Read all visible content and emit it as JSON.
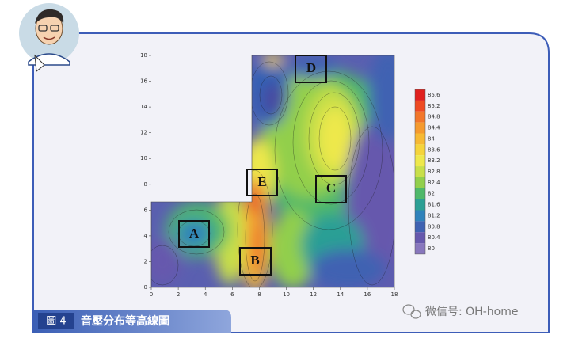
{
  "chart_data": {
    "type": "contour",
    "xlim": [
      0,
      18
    ],
    "ylim": [
      0,
      18
    ],
    "xticks": [
      0,
      2,
      4,
      6,
      8,
      10,
      12,
      14,
      16,
      18
    ],
    "yticks": [
      0,
      2,
      4,
      6,
      8,
      10,
      12,
      14,
      16,
      18
    ],
    "levels": [
      85.6,
      85.2,
      84.8,
      84.4,
      84,
      83.6,
      83.2,
      82.8,
      82.4,
      82,
      81.6,
      81.2,
      80.8,
      80.4,
      80
    ],
    "level_colors": [
      "#e0201e",
      "#ee4a22",
      "#f2762a",
      "#f59a2e",
      "#f6b934",
      "#f5d43c",
      "#eee84c",
      "#c8df4a",
      "#92cf4c",
      "#4fb86a",
      "#2c9f95",
      "#2f82bb",
      "#3f62b2",
      "#6658ad",
      "#8877bd"
    ],
    "regions": [
      "A",
      "B",
      "C",
      "D",
      "E"
    ]
  },
  "caption": {
    "number": "圖 4",
    "title": "音壓分布等高線圖"
  },
  "watermark": "微信号: OH-home"
}
